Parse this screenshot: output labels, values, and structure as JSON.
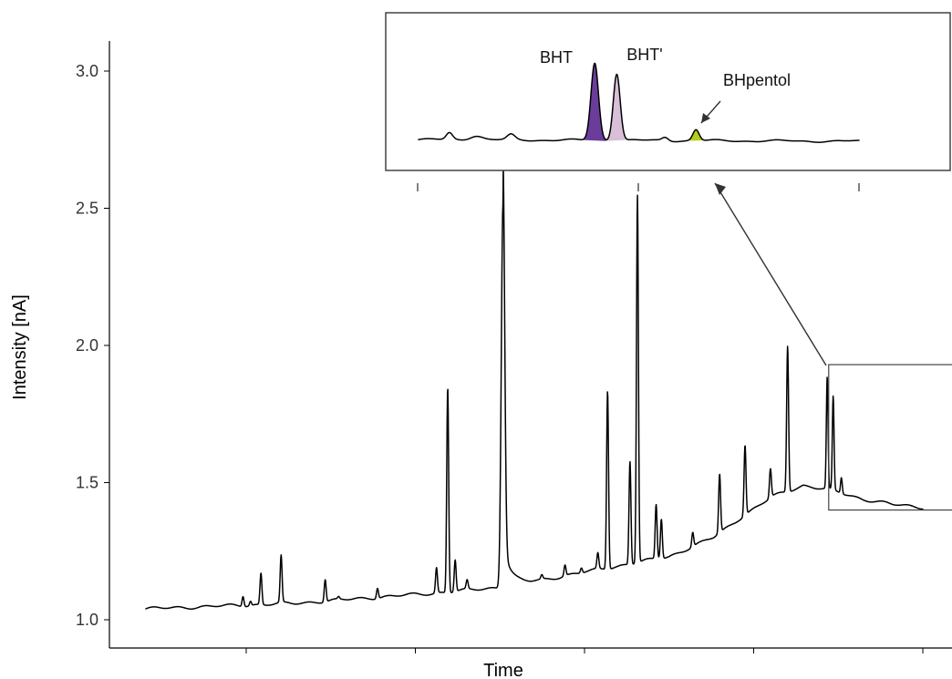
{
  "chart_data": [
    {
      "type": "line",
      "title": "",
      "xlabel": "Time",
      "ylabel": "Intensity [nA]",
      "ylim": [
        1.0,
        3.0
      ],
      "ytick_labels": [
        "1.0",
        "1.5",
        "2.0",
        "2.5",
        "3.0"
      ],
      "ytick_values": [
        1.0,
        1.5,
        2.0,
        2.5,
        3.0
      ],
      "x_ticks_shown": 5,
      "x_tick_labels": [],
      "grid": false,
      "legend": "none",
      "series": [
        {
          "color": "#000000",
          "baseline": [
            [
              0.0,
              1.04
            ],
            [
              0.1,
              1.05
            ],
            [
              0.2,
              1.06
            ],
            [
              0.3,
              1.08
            ],
            [
              0.4,
              1.1
            ],
            [
              0.48,
              1.12
            ],
            [
              0.6,
              1.18
            ],
            [
              0.7,
              1.23
            ],
            [
              0.76,
              1.3
            ],
            [
              0.8,
              1.38
            ],
            [
              0.84,
              1.45
            ],
            [
              0.88,
              1.49
            ],
            [
              0.92,
              1.47
            ],
            [
              0.96,
              1.44
            ],
            [
              1.0,
              1.42
            ],
            [
              1.04,
              1.41
            ]
          ],
          "peaks": [
            [
              0.13,
              1.09
            ],
            [
              0.14,
              1.07
            ],
            [
              0.154,
              1.17
            ],
            [
              0.181,
              1.23
            ],
            [
              0.24,
              1.15
            ],
            [
              0.258,
              1.08
            ],
            [
              0.31,
              1.12
            ],
            [
              0.36,
              1.08
            ],
            [
              0.389,
              1.19
            ],
            [
              0.404,
              1.85
            ],
            [
              0.414,
              1.22
            ],
            [
              0.43,
              1.14
            ],
            [
              0.478,
              2.52
            ],
            [
              0.53,
              1.16
            ],
            [
              0.561,
              1.2
            ],
            [
              0.583,
              1.19
            ],
            [
              0.605,
              1.24
            ],
            [
              0.618,
              1.84
            ],
            [
              0.648,
              1.58
            ],
            [
              0.658,
              2.55
            ],
            [
              0.683,
              1.42
            ],
            [
              0.69,
              1.37
            ],
            [
              0.732,
              1.32
            ],
            [
              0.768,
              1.53
            ],
            [
              0.802,
              1.64
            ],
            [
              0.836,
              1.55
            ],
            [
              0.859,
              2.0
            ],
            [
              0.912,
              1.88
            ],
            [
              0.92,
              1.81
            ],
            [
              0.931,
              1.52
            ]
          ]
        }
      ],
      "zoom_region": {
        "x_range": [
          0.914,
          1.104
        ],
        "y_range": [
          1.4,
          1.93
        ]
      }
    },
    {
      "type": "line",
      "title": "",
      "xlabel": "",
      "ylabel": "",
      "annotations": [
        "BHT",
        "BHT'",
        "BHpentol"
      ],
      "highlight_colors": {
        "BHT": "#6a3d9a",
        "BHT'": "#d9bfd8",
        "BHpentol": "#b5cc18"
      },
      "x_ticks_shown": 3,
      "series": [
        {
          "color": "#000000",
          "peaks": [
            {
              "x": 0.07,
              "y": 0.08,
              "width": 0.01
            },
            {
              "x": 0.13,
              "y": 0.05,
              "width": 0.02
            },
            {
              "x": 0.21,
              "y": 0.06,
              "width": 0.012
            },
            {
              "x": 0.4,
              "y": 0.92,
              "width": 0.012,
              "label": "BHT"
            },
            {
              "x": 0.45,
              "y": 0.8,
              "width": 0.011,
              "label": "BHT'"
            },
            {
              "x": 0.56,
              "y": 0.04,
              "width": 0.01
            },
            {
              "x": 0.63,
              "y": 0.13,
              "width": 0.01,
              "label": "BHpentol"
            }
          ]
        }
      ]
    }
  ]
}
